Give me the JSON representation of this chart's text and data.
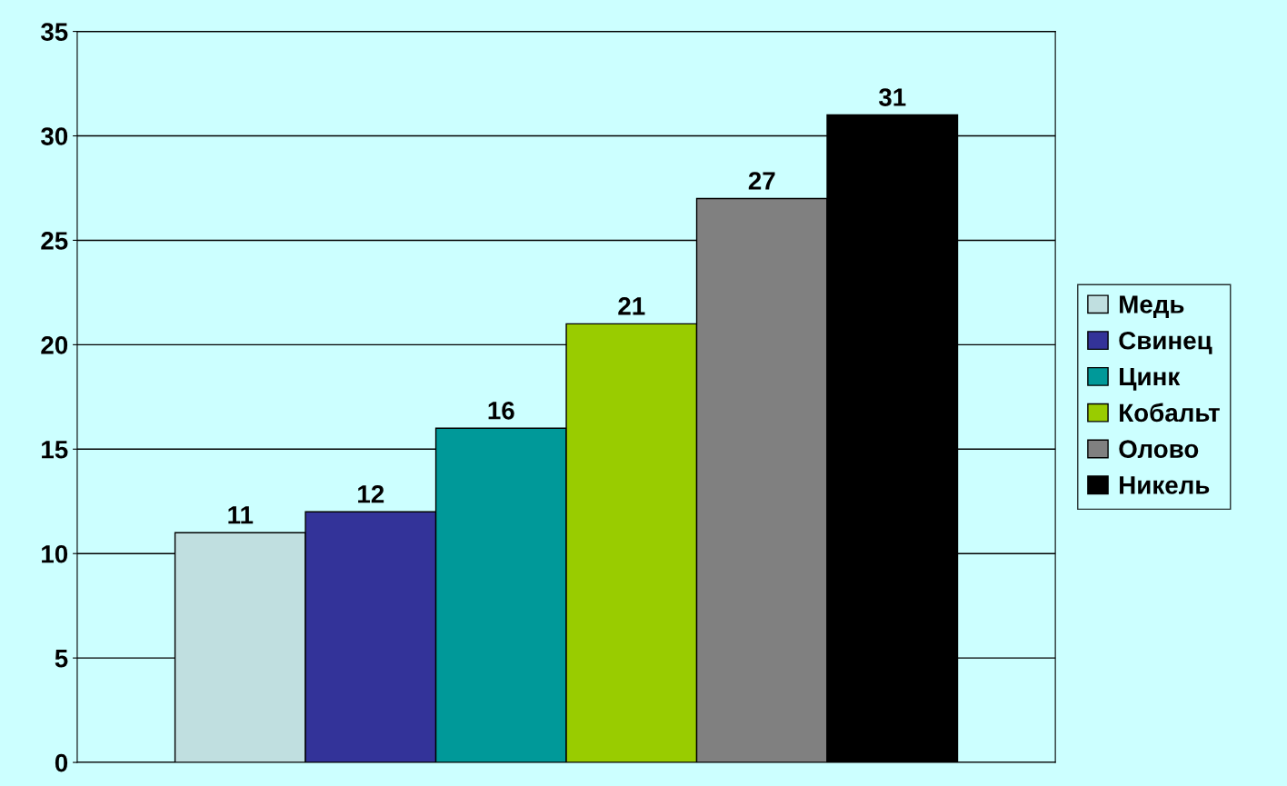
{
  "chart_data": {
    "type": "bar",
    "categories": [
      null
    ],
    "series": [
      {
        "name": "Медь",
        "color": "#c0dfe0",
        "values": [
          11
        ]
      },
      {
        "name": "Свинец",
        "color": "#333399",
        "values": [
          12
        ]
      },
      {
        "name": "Цинк",
        "color": "#009999",
        "values": [
          16
        ]
      },
      {
        "name": "Кобальт",
        "color": "#99cc00",
        "values": [
          21
        ]
      },
      {
        "name": "Олово",
        "color": "#808080",
        "values": [
          27
        ]
      },
      {
        "name": "Никель",
        "color": "#000000",
        "values": [
          31
        ]
      }
    ],
    "ylim": [
      0,
      35
    ],
    "yticks": [
      0,
      5,
      10,
      15,
      20,
      25,
      30,
      35
    ],
    "grid": "y",
    "legend": "right",
    "data_labels": true
  }
}
